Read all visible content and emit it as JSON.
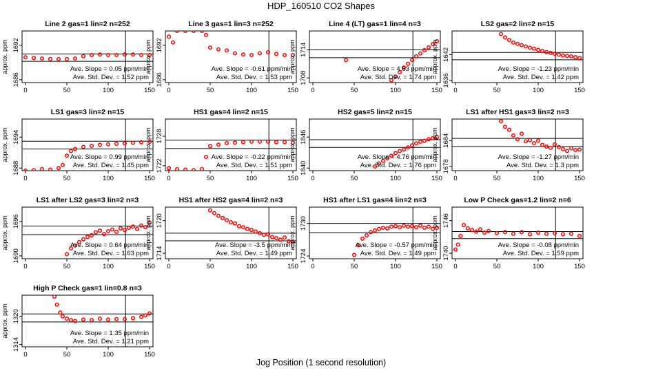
{
  "figure": {
    "title": "HDP_160510  CO2 Shapes",
    "xlabel": "Jog Position (1 second resolution)",
    "marker_color": "#ff0000"
  },
  "chart_data": [
    {
      "type": "scatter",
      "title": "Line 2 gas=1 lin=2 n=252",
      "ylabel": "approx. ppm",
      "xlim": [
        0,
        150
      ],
      "ylim": [
        1685.5,
        1694.5
      ],
      "yticks": [
        "1686",
        "1692"
      ],
      "xticks": [
        "0",
        "50",
        "100",
        "150"
      ],
      "hlines": [
        1690.5,
        1689.2
      ],
      "vline": 121,
      "slope_text": "Ave. Slope = 0.05  ppm/min",
      "std_text": "Ave. Std. Dev. = 1.52  ppm",
      "series": [
        {
          "x": [
            0,
            10,
            20,
            30,
            40,
            50,
            60,
            70,
            80,
            90,
            100,
            110,
            120,
            130,
            140,
            150
          ],
          "y": [
            1689.9,
            1689.8,
            1689.7,
            1689.6,
            1689.6,
            1689.6,
            1689.7,
            1690.1,
            1690.3,
            1690.4,
            1690.3,
            1690.3,
            1690.4,
            1690.4,
            1690.3,
            1690.3
          ]
        }
      ]
    },
    {
      "type": "scatter",
      "title": "Line 3 gas=1 lin=3 n=252",
      "ylabel": "approx. ppm",
      "xlim": [
        0,
        150
      ],
      "ylim": [
        1685.5,
        1694.5
      ],
      "yticks": [
        "1686",
        "1692"
      ],
      "xticks": [
        "0",
        "50",
        "100",
        "150"
      ],
      "hlines": [],
      "vline": 121,
      "slope_text": "Ave. Slope = -0.61  ppm/min",
      "std_text": "Ave. Std. Dev. = 1.53  ppm",
      "series": [
        {
          "x": [
            0,
            5,
            10,
            20,
            30,
            40,
            45,
            50,
            60,
            70,
            80,
            90,
            100,
            110,
            120,
            130,
            140,
            150
          ],
          "y": [
            1693.5,
            1692.5,
            1694.5,
            1694.5,
            1694.5,
            1694.5,
            1693.8,
            1691.6,
            1691.3,
            1691.1,
            1690.6,
            1690.4,
            1690.3,
            1690.6,
            1690.8,
            1690.5,
            1690.3,
            1690.3
          ]
        }
      ]
    },
    {
      "type": "scatter",
      "title": "Line 4 (LT) gas=1 lin=4 n=3",
      "ylabel": "approx. ppm",
      "xlim": [
        0,
        150
      ],
      "ylim": [
        1707,
        1718
      ],
      "yticks": [
        "1708",
        "1714"
      ],
      "xticks": [
        "0",
        "50",
        "100",
        "150"
      ],
      "hlines": [
        1714,
        1712.3
      ],
      "vline": 121,
      "slope_text": "Ave. Slope = 4.83  ppm/min",
      "std_text": "Ave. Std. Dev. = 1.74  ppm",
      "series": [
        {
          "x": [
            40,
            95,
            100,
            105,
            110,
            115,
            120,
            125,
            130,
            135,
            140,
            145,
            150
          ],
          "y": [
            1711.8,
            1707.5,
            1708.3,
            1709.2,
            1710.2,
            1711.0,
            1711.8,
            1712.6,
            1713.2,
            1713.9,
            1714.5,
            1715.2,
            1715.8
          ]
        }
      ]
    },
    {
      "type": "scatter",
      "title": "LS2 gas=2 lin=2 n=15",
      "ylabel": "approx. ppm",
      "xlim": [
        0,
        150
      ],
      "ylim": [
        1635.5,
        1647.5
      ],
      "yticks": [
        "1636",
        "1642"
      ],
      "xticks": [
        "0",
        "50",
        "100",
        "150"
      ],
      "hlines": [
        1642.5,
        1640.8
      ],
      "vline": 121,
      "slope_text": "Ave. Slope = -1.23  ppm/min",
      "std_text": "Ave. Std. Dev. = 1.42  ppm",
      "series": [
        {
          "x": [
            55,
            60,
            65,
            70,
            75,
            80,
            85,
            90,
            95,
            100,
            105,
            110,
            115,
            120,
            125,
            130,
            135,
            140,
            145,
            150
          ],
          "y": [
            1646.8,
            1646.0,
            1645.4,
            1644.8,
            1644.5,
            1644.2,
            1643.9,
            1643.6,
            1643.4,
            1643.1,
            1642.9,
            1642.6,
            1642.4,
            1642.2,
            1642.0,
            1641.8,
            1641.7,
            1641.6,
            1641.4,
            1641.2
          ]
        }
      ]
    },
    {
      "type": "scatter",
      "title": "LS1 gas=3 lin=2 n=15",
      "ylabel": "approx. ppm",
      "xlim": [
        0,
        150
      ],
      "ylim": [
        1687.5,
        1697.5
      ],
      "yticks": [
        "1688",
        "1694"
      ],
      "xticks": [
        "0",
        "50",
        "100",
        "150"
      ],
      "hlines": [
        1693.2,
        1691.7
      ],
      "vline": 121,
      "slope_text": "Ave. Slope = 0.99  ppm/min",
      "std_text": "Ave. Std. Dev. = 1.45  ppm",
      "series": [
        {
          "x": [
            0,
            10,
            20,
            30,
            40,
            45,
            50,
            55,
            60,
            70,
            80,
            90,
            100,
            110,
            120,
            130,
            140,
            150
          ],
          "y": [
            1687.5,
            1687.6,
            1687.8,
            1687.7,
            1688.0,
            1688.6,
            1690.4,
            1691.3,
            1691.7,
            1692.1,
            1692.3,
            1692.5,
            1692.6,
            1692.7,
            1692.8,
            1692.9,
            1693.0,
            1693.1
          ]
        }
      ]
    },
    {
      "type": "scatter",
      "title": "HS1 gas=4 lin=2 n=15",
      "ylabel": "approx. ppm",
      "xlim": [
        0,
        150
      ],
      "ylim": [
        1721,
        1731.5
      ],
      "yticks": [
        "1722",
        "1728"
      ],
      "xticks": [
        "0",
        "50",
        "100",
        "150"
      ],
      "hlines": [
        1727.2,
        1725.5
      ],
      "vline": 121,
      "slope_text": "Ave. Slope = -0.22  ppm/min",
      "std_text": "Ave. Std. Dev. = 1.51  ppm",
      "series": [
        {
          "x": [
            0,
            10,
            20,
            30,
            40,
            45,
            50,
            60,
            70,
            80,
            90,
            100,
            110,
            120,
            130,
            140,
            150
          ],
          "y": [
            1721.5,
            1721.3,
            1721.2,
            1721.1,
            1721.3,
            1723.8,
            1726.0,
            1726.3,
            1726.6,
            1726.7,
            1726.8,
            1726.9,
            1726.9,
            1726.9,
            1726.8,
            1726.8,
            1726.7
          ]
        }
      ]
    },
    {
      "type": "scatter",
      "title": "HS2 gas=5 lin=2 n=15",
      "ylabel": "approx. ppm",
      "xlim": [
        0,
        150
      ],
      "ylim": [
        1839.5,
        1849.5
      ],
      "yticks": [
        "1840",
        "1846"
      ],
      "xticks": [
        "0",
        "50",
        "100",
        "150"
      ],
      "hlines": [
        1845.5,
        1844
      ],
      "vline": 121,
      "slope_text": "Ave. Slope = 4.76  ppm/min",
      "std_text": "Ave. Std. Dev. = 1.76  ppm",
      "series": [
        {
          "x": [
            75,
            80,
            85,
            90,
            95,
            100,
            105,
            110,
            115,
            120,
            125,
            130,
            135,
            140,
            145,
            150
          ],
          "y": [
            1840.3,
            1840.9,
            1841.4,
            1841.9,
            1842.4,
            1842.9,
            1843.3,
            1843.6,
            1844.0,
            1844.4,
            1844.8,
            1845.1,
            1845.3,
            1845.6,
            1845.8,
            1846.0
          ]
        }
      ]
    },
    {
      "type": "scatter",
      "title": "LS1 after HS1 gas=3 lin=2 n=3",
      "ylabel": "approx. ppm",
      "xlim": [
        0,
        150
      ],
      "ylim": [
        1677,
        1689
      ],
      "yticks": [
        "1678",
        "1684"
      ],
      "xticks": [
        "0",
        "50",
        "100",
        "150"
      ],
      "hlines": [
        1684.5,
        1682.6
      ],
      "vline": 121,
      "slope_text": "Ave. Slope = -1.27  ppm/min",
      "std_text": "Ave. Std. Dev. = 1.3  ppm",
      "series": [
        {
          "x": [
            55,
            60,
            65,
            70,
            75,
            80,
            85,
            90,
            95,
            100,
            105,
            110,
            115,
            120,
            125,
            130,
            135,
            140,
            145,
            150
          ],
          "y": [
            1688.5,
            1687.2,
            1686.5,
            1685.2,
            1684.3,
            1685.6,
            1683.8,
            1684.1,
            1683.4,
            1684.0,
            1683.0,
            1682.6,
            1682.3,
            1683.1,
            1682.5,
            1682.0,
            1681.6,
            1682.2,
            1681.8,
            1681.9
          ]
        }
      ]
    },
    {
      "type": "scatter",
      "title": "LS1 after LS2 gas=3 lin=2 n=3",
      "ylabel": "approx. ppm",
      "xlim": [
        0,
        150
      ],
      "ylim": [
        1689.5,
        1698.5
      ],
      "yticks": [
        "1690",
        "1696"
      ],
      "xticks": [
        "0",
        "50",
        "100",
        "150"
      ],
      "hlines": [
        1695.2,
        1693.7
      ],
      "vline": 121,
      "slope_text": "Ave. Slope = 0.64  ppm/min",
      "std_text": "Ave. Std. Dev. = 1.63  ppm",
      "series": [
        {
          "x": [
            50,
            55,
            60,
            65,
            70,
            75,
            80,
            85,
            90,
            95,
            100,
            105,
            110,
            115,
            120,
            125,
            130,
            135,
            140,
            145,
            150
          ],
          "y": [
            1690.3,
            1691.3,
            1691.8,
            1692.4,
            1692.9,
            1693.3,
            1693.6,
            1694.1,
            1694.4,
            1693.8,
            1694.3,
            1694.6,
            1694.2,
            1694.8,
            1694.5,
            1694.9,
            1695.1,
            1694.7,
            1695.3,
            1695.0,
            1695.8
          ]
        }
      ]
    },
    {
      "type": "scatter",
      "title": "HS1 after HS2 gas=4 lin=2 n=3",
      "ylabel": "approx. ppm",
      "xlim": [
        0,
        150
      ],
      "ylim": [
        1713,
        1722.5
      ],
      "yticks": [
        "1714",
        "1720"
      ],
      "xticks": [
        "0",
        "50",
        "100",
        "150"
      ],
      "hlines": [
        1717.7,
        1716.3
      ],
      "vline": 121,
      "slope_text": "Ave. Slope = -3.5  ppm/min",
      "std_text": "Ave. Std. Dev. = 1.49  ppm",
      "series": [
        {
          "x": [
            50,
            55,
            60,
            65,
            70,
            75,
            80,
            85,
            90,
            95,
            100,
            105,
            110,
            115,
            120,
            125,
            130,
            135,
            140,
            145,
            150
          ],
          "y": [
            1721.9,
            1721.4,
            1720.9,
            1720.5,
            1720.1,
            1719.7,
            1719.5,
            1719.0,
            1718.8,
            1718.5,
            1718.3,
            1718.0,
            1717.7,
            1717.4,
            1717.5,
            1717.0,
            1716.8,
            1716.5,
            1716.9,
            1716.2,
            1716.0
          ]
        }
      ]
    },
    {
      "type": "scatter",
      "title": "HS1 after LS1 gas=4 lin=2 n=3",
      "ylabel": "approx. ppm",
      "xlim": [
        0,
        150
      ],
      "ylim": [
        1723.5,
        1733
      ],
      "yticks": [
        "1724",
        "1730"
      ],
      "xticks": [
        "0",
        "50",
        "100",
        "150"
      ],
      "hlines": [
        1730,
        1728.3
      ],
      "vline": 121,
      "slope_text": "Ave. Slope = -0.57  ppm/min",
      "std_text": "Ave. Std. Dev. = 1.49  ppm",
      "series": [
        {
          "x": [
            50,
            55,
            60,
            65,
            70,
            75,
            80,
            85,
            90,
            95,
            100,
            105,
            110,
            115,
            120,
            125,
            130,
            135,
            140,
            145,
            150
          ],
          "y": [
            1724.2,
            1726.0,
            1727.2,
            1727.8,
            1728.4,
            1728.7,
            1729.0,
            1729.2,
            1729.1,
            1729.4,
            1729.5,
            1729.3,
            1729.6,
            1729.4,
            1729.5,
            1729.3,
            1729.6,
            1729.2,
            1729.4,
            1729.0,
            1729.2
          ]
        }
      ]
    },
    {
      "type": "scatter",
      "title": "Low P Check gas=1.2 lin=2 n=6",
      "ylabel": "approx. ppm",
      "xlim": [
        0,
        150
      ],
      "ylim": [
        1739,
        1748.5
      ],
      "yticks": [
        "1740",
        "1746"
      ],
      "xticks": [
        "0",
        "50",
        "100",
        "150"
      ],
      "hlines": [
        1744,
        1742.7
      ],
      "vline": 121,
      "slope_text": "Ave. Slope = -0.08  ppm/min",
      "std_text": "Ave. Std. Dev. = 1.59  ppm",
      "series": [
        {
          "x": [
            0,
            3,
            6,
            10,
            15,
            20,
            25,
            30,
            35,
            40,
            50,
            60,
            70,
            80,
            90,
            100,
            110,
            120,
            130,
            140,
            150
          ],
          "y": [
            1740.7,
            1741.6,
            1743.2,
            1745.2,
            1744.6,
            1744.3,
            1744.0,
            1744.4,
            1743.8,
            1744.1,
            1743.7,
            1743.9,
            1743.6,
            1743.9,
            1743.5,
            1743.8,
            1743.6,
            1743.7,
            1743.5,
            1743.6,
            1743.2
          ]
        }
      ]
    },
    {
      "type": "scatter",
      "title": "High P Check gas=1 lin=0.8 n=3",
      "ylabel": "approx. ppm",
      "xlim": [
        0,
        150
      ],
      "ylim": [
        1313.5,
        1324.5
      ],
      "yticks": [
        "1314",
        "1320"
      ],
      "xticks": [
        "0",
        "50",
        "100",
        "150"
      ],
      "hlines": [
        1320.5,
        1318.8
      ],
      "vline": 121,
      "slope_text": "Ave. Slope = 1.35  ppm/min",
      "std_text": "Ave. Std. Dev. = 1.21  ppm",
      "series": [
        {
          "x": [
            35,
            38,
            42,
            45,
            50,
            55,
            60,
            70,
            80,
            90,
            100,
            110,
            120,
            130,
            140,
            145,
            150
          ],
          "y": [
            1324.2,
            1322.5,
            1320.8,
            1320.0,
            1319.5,
            1319.2,
            1319.0,
            1319.3,
            1319.2,
            1319.5,
            1319.3,
            1319.4,
            1319.4,
            1319.6,
            1319.9,
            1320.2,
            1320.6
          ]
        }
      ]
    }
  ]
}
